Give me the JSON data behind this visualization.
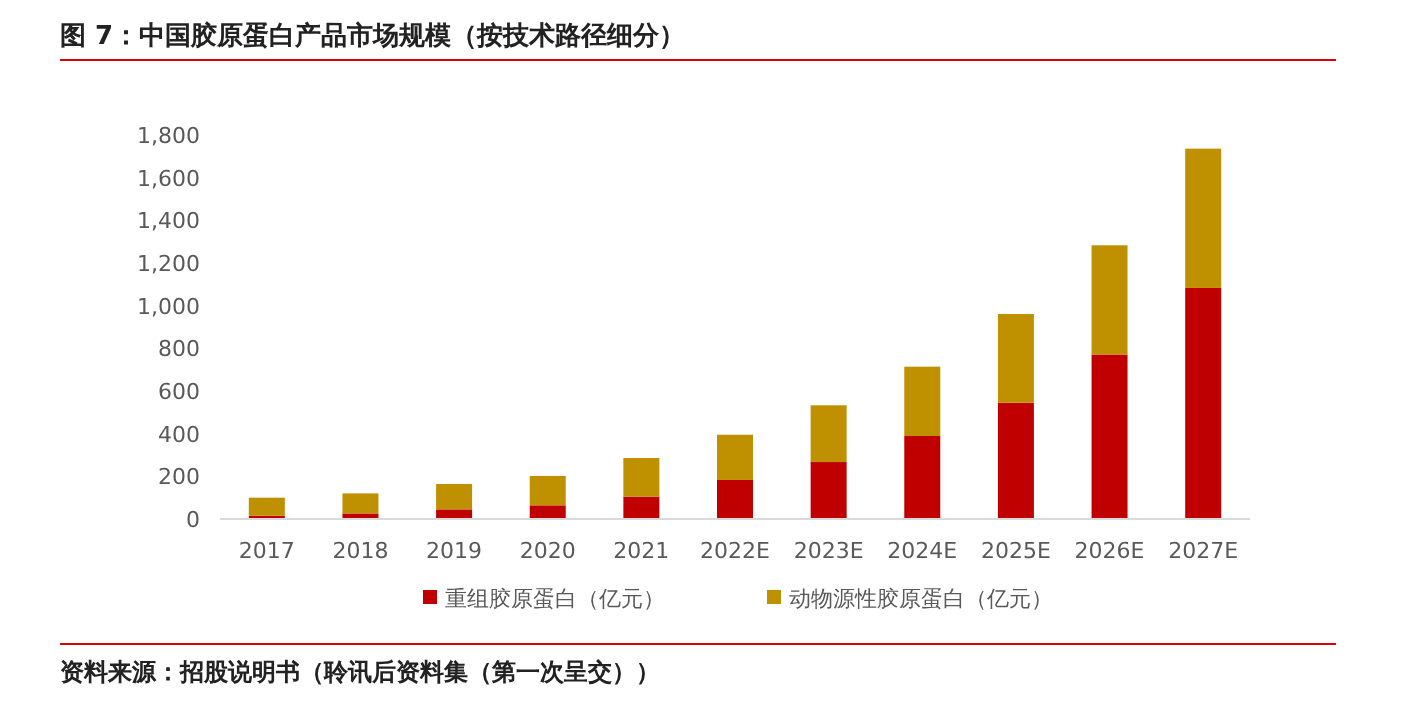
{
  "chart_data": {
    "type": "bar",
    "stacked": true,
    "title": "图 7：中国胶原蛋白产品市场规模（按技术路径细分）",
    "categories": [
      "2017",
      "2018",
      "2019",
      "2020",
      "2021",
      "2022E",
      "2023E",
      "2024E",
      "2025E",
      "2026E",
      "2027E"
    ],
    "series": [
      {
        "name": "重组胶原蛋白（亿元）",
        "color": "#c00000",
        "values": [
          15,
          26,
          45,
          64,
          105,
          183,
          267,
          389,
          545,
          771,
          1083
        ]
      },
      {
        "name": "动物源性胶原蛋白（亿元）",
        "color": "#bf9000",
        "values": [
          85,
          94,
          119,
          138,
          181,
          212,
          266,
          325,
          416,
          512,
          653
        ]
      }
    ],
    "ylim": [
      0,
      1800
    ],
    "yticks": [
      {
        "value": 0,
        "label": "0"
      },
      {
        "value": 200,
        "label": "200"
      },
      {
        "value": 400,
        "label": "400"
      },
      {
        "value": 600,
        "label": "600"
      },
      {
        "value": 800,
        "label": "800"
      },
      {
        "value": 1000,
        "label": "1,000"
      },
      {
        "value": 1200,
        "label": "1,200"
      },
      {
        "value": 1400,
        "label": "1,400"
      },
      {
        "value": 1600,
        "label": "1,600"
      },
      {
        "value": 1800,
        "label": "1,800"
      }
    ],
    "legend": "bottom",
    "annotations": [
      "资料来源：招股说明书（聆讯后资料集（第一次呈交））"
    ]
  }
}
